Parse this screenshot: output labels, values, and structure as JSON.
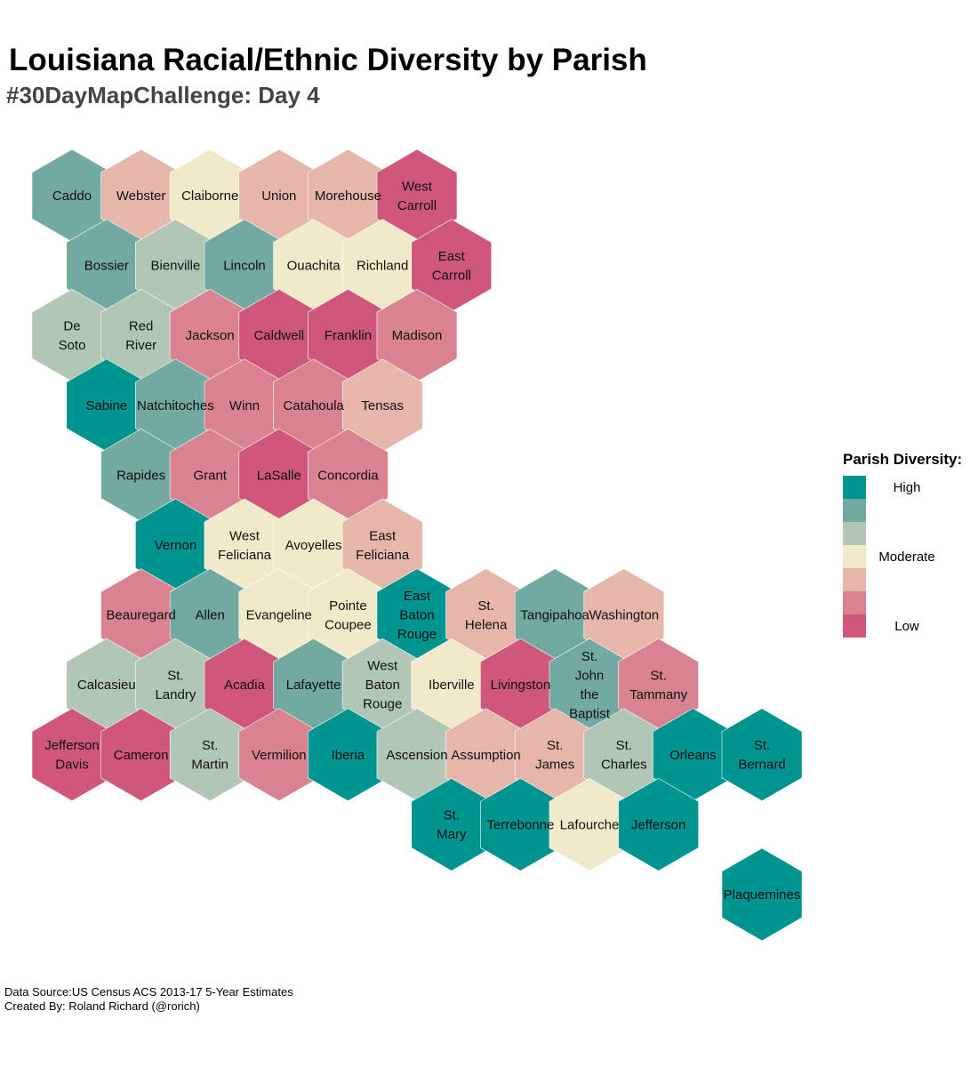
{
  "title": "Louisiana Racial/Ethnic Diversity by Parish",
  "subtitle": "#30DayMapChallenge: Day 4",
  "legend": {
    "title": "Parish Diversity:",
    "levels": [
      {
        "color": "#009490",
        "label": "High"
      },
      {
        "color": "#72A9A0",
        "label": ""
      },
      {
        "color": "#B1C6B5",
        "label": ""
      },
      {
        "color": "#F1EACA",
        "label": "Moderate"
      },
      {
        "color": "#E6B6AB",
        "label": ""
      },
      {
        "color": "#D8838F",
        "label": ""
      },
      {
        "color": "#D0577C",
        "label": "Low"
      }
    ]
  },
  "parishes": [
    {
      "name": "Caddo",
      "lines": [
        "Caddo"
      ],
      "row": 0,
      "col": 0,
      "level": 1
    },
    {
      "name": "Webster",
      "lines": [
        "Webster"
      ],
      "row": 0,
      "col": 1,
      "level": 4
    },
    {
      "name": "Claiborne",
      "lines": [
        "Claiborne"
      ],
      "row": 0,
      "col": 2,
      "level": 3
    },
    {
      "name": "Union",
      "lines": [
        "Union"
      ],
      "row": 0,
      "col": 3,
      "level": 4
    },
    {
      "name": "Morehouse",
      "lines": [
        "Morehouse"
      ],
      "row": 0,
      "col": 4,
      "level": 4
    },
    {
      "name": "West Carroll",
      "lines": [
        "West",
        "Carroll"
      ],
      "row": 0,
      "col": 5,
      "level": 6
    },
    {
      "name": "Bossier",
      "lines": [
        "Bossier"
      ],
      "row": 1,
      "col": 0,
      "level": 1
    },
    {
      "name": "Bienville",
      "lines": [
        "Bienville"
      ],
      "row": 1,
      "col": 1,
      "level": 2
    },
    {
      "name": "Lincoln",
      "lines": [
        "Lincoln"
      ],
      "row": 1,
      "col": 2,
      "level": 1
    },
    {
      "name": "Ouachita",
      "lines": [
        "Ouachita"
      ],
      "row": 1,
      "col": 3,
      "level": 3
    },
    {
      "name": "Richland",
      "lines": [
        "Richland"
      ],
      "row": 1,
      "col": 4,
      "level": 3
    },
    {
      "name": "East Carroll",
      "lines": [
        "East",
        "Carroll"
      ],
      "row": 1,
      "col": 5,
      "level": 6
    },
    {
      "name": "De Soto",
      "lines": [
        "De",
        "Soto"
      ],
      "row": 2,
      "col": 0,
      "level": 2
    },
    {
      "name": "Red River",
      "lines": [
        "Red",
        "River"
      ],
      "row": 2,
      "col": 1,
      "level": 2
    },
    {
      "name": "Jackson",
      "lines": [
        "Jackson"
      ],
      "row": 2,
      "col": 2,
      "level": 5
    },
    {
      "name": "Caldwell",
      "lines": [
        "Caldwell"
      ],
      "row": 2,
      "col": 3,
      "level": 6
    },
    {
      "name": "Franklin",
      "lines": [
        "Franklin"
      ],
      "row": 2,
      "col": 4,
      "level": 6
    },
    {
      "name": "Madison",
      "lines": [
        "Madison"
      ],
      "row": 2,
      "col": 5,
      "level": 5
    },
    {
      "name": "Sabine",
      "lines": [
        "Sabine"
      ],
      "row": 3,
      "col": 0,
      "level": 0
    },
    {
      "name": "Natchitoches",
      "lines": [
        "Natchitoches"
      ],
      "row": 3,
      "col": 1,
      "level": 1
    },
    {
      "name": "Winn",
      "lines": [
        "Winn"
      ],
      "row": 3,
      "col": 2,
      "level": 5
    },
    {
      "name": "Catahoula",
      "lines": [
        "Catahoula"
      ],
      "row": 3,
      "col": 3,
      "level": 5
    },
    {
      "name": "Tensas",
      "lines": [
        "Tensas"
      ],
      "row": 3,
      "col": 4,
      "level": 4
    },
    {
      "name": "Rapides",
      "lines": [
        "Rapides"
      ],
      "row": 4,
      "col": 1,
      "level": 1
    },
    {
      "name": "Grant",
      "lines": [
        "Grant"
      ],
      "row": 4,
      "col": 2,
      "level": 5
    },
    {
      "name": "LaSalle",
      "lines": [
        "LaSalle"
      ],
      "row": 4,
      "col": 3,
      "level": 6
    },
    {
      "name": "Concordia",
      "lines": [
        "Concordia"
      ],
      "row": 4,
      "col": 4,
      "level": 5
    },
    {
      "name": "Vernon",
      "lines": [
        "Vernon"
      ],
      "row": 5,
      "col": 1,
      "level": 0
    },
    {
      "name": "West Feliciana",
      "lines": [
        "West",
        "Feliciana"
      ],
      "row": 5,
      "col": 2,
      "level": 3
    },
    {
      "name": "Avoyelles",
      "lines": [
        "Avoyelles"
      ],
      "row": 5,
      "col": 3,
      "level": 3
    },
    {
      "name": "East Feliciana",
      "lines": [
        "East",
        "Feliciana"
      ],
      "row": 5,
      "col": 4,
      "level": 4
    },
    {
      "name": "Beauregard",
      "lines": [
        "Beauregard"
      ],
      "row": 6,
      "col": 1,
      "level": 5
    },
    {
      "name": "Allen",
      "lines": [
        "Allen"
      ],
      "row": 6,
      "col": 2,
      "level": 1
    },
    {
      "name": "Evangeline",
      "lines": [
        "Evangeline"
      ],
      "row": 6,
      "col": 3,
      "level": 3
    },
    {
      "name": "Pointe Coupee",
      "lines": [
        "Pointe",
        "Coupee"
      ],
      "row": 6,
      "col": 4,
      "level": 3
    },
    {
      "name": "East Baton Rouge",
      "lines": [
        "East",
        "Baton",
        "Rouge"
      ],
      "row": 6,
      "col": 5,
      "level": 0
    },
    {
      "name": "St. Helena",
      "lines": [
        "St.",
        "Helena"
      ],
      "row": 6,
      "col": 6,
      "level": 4
    },
    {
      "name": "Tangipahoa",
      "lines": [
        "Tangipahoa"
      ],
      "row": 6,
      "col": 7,
      "level": 1
    },
    {
      "name": "Washington",
      "lines": [
        "Washington"
      ],
      "row": 6,
      "col": 8,
      "level": 4
    },
    {
      "name": "Calcasieu",
      "lines": [
        "Calcasieu"
      ],
      "row": 7,
      "col": 0,
      "level": 2
    },
    {
      "name": "St. Landry",
      "lines": [
        "St.",
        "Landry"
      ],
      "row": 7,
      "col": 1,
      "level": 2
    },
    {
      "name": "Acadia",
      "lines": [
        "Acadia"
      ],
      "row": 7,
      "col": 2,
      "level": 6
    },
    {
      "name": "Lafayette",
      "lines": [
        "Lafayette"
      ],
      "row": 7,
      "col": 3,
      "level": 1
    },
    {
      "name": "West Baton Rouge",
      "lines": [
        "West",
        "Baton",
        "Rouge"
      ],
      "row": 7,
      "col": 4,
      "level": 2
    },
    {
      "name": "Iberville",
      "lines": [
        "Iberville"
      ],
      "row": 7,
      "col": 5,
      "level": 3
    },
    {
      "name": "Livingston",
      "lines": [
        "Livingston"
      ],
      "row": 7,
      "col": 6,
      "level": 6
    },
    {
      "name": "St. John the Baptist",
      "lines": [
        "St.",
        "John",
        "the",
        "Baptist"
      ],
      "row": 7,
      "col": 7,
      "level": 1
    },
    {
      "name": "St. Tammany",
      "lines": [
        "St.",
        "Tammany"
      ],
      "row": 7,
      "col": 8,
      "level": 5
    },
    {
      "name": "Jefferson Davis",
      "lines": [
        "Jefferson",
        "Davis"
      ],
      "row": 8,
      "col": 0,
      "level": 6
    },
    {
      "name": "Cameron",
      "lines": [
        "Cameron"
      ],
      "row": 8,
      "col": 1,
      "level": 6
    },
    {
      "name": "St. Martin",
      "lines": [
        "St.",
        "Martin"
      ],
      "row": 8,
      "col": 2,
      "level": 2
    },
    {
      "name": "Vermilion",
      "lines": [
        "Vermilion"
      ],
      "row": 8,
      "col": 3,
      "level": 5
    },
    {
      "name": "Iberia",
      "lines": [
        "Iberia"
      ],
      "row": 8,
      "col": 4,
      "level": 0
    },
    {
      "name": "Ascension",
      "lines": [
        "Ascension"
      ],
      "row": 8,
      "col": 5,
      "level": 2
    },
    {
      "name": "Assumption",
      "lines": [
        "Assumption"
      ],
      "row": 8,
      "col": 6,
      "level": 4
    },
    {
      "name": "St. James",
      "lines": [
        "St.",
        "James"
      ],
      "row": 8,
      "col": 7,
      "level": 4
    },
    {
      "name": "St. Charles",
      "lines": [
        "St.",
        "Charles"
      ],
      "row": 8,
      "col": 8,
      "level": 2
    },
    {
      "name": "Orleans",
      "lines": [
        "Orleans"
      ],
      "row": 8,
      "col": 9,
      "level": 0
    },
    {
      "name": "St. Bernard",
      "lines": [
        "St.",
        "Bernard"
      ],
      "row": 8,
      "col": 10,
      "level": 0
    },
    {
      "name": "St. Mary",
      "lines": [
        "St.",
        "Mary"
      ],
      "row": 9,
      "col": 5,
      "level": 0
    },
    {
      "name": "Terrebonne",
      "lines": [
        "Terrebonne"
      ],
      "row": 9,
      "col": 6,
      "level": 0
    },
    {
      "name": "Lafourche",
      "lines": [
        "Lafourche"
      ],
      "row": 9,
      "col": 7,
      "level": 3
    },
    {
      "name": "Jefferson",
      "lines": [
        "Jefferson"
      ],
      "row": 9,
      "col": 8,
      "level": 0
    },
    {
      "name": "Plaquemines",
      "lines": [
        "Plaquemines"
      ],
      "row": 10,
      "col": 10,
      "level": 0
    }
  ],
  "footer": {
    "source": "Data Source:US Census ACS 2013-17 5-Year Estimates",
    "credit": "Created By: Roland Richard (@rorich)"
  }
}
